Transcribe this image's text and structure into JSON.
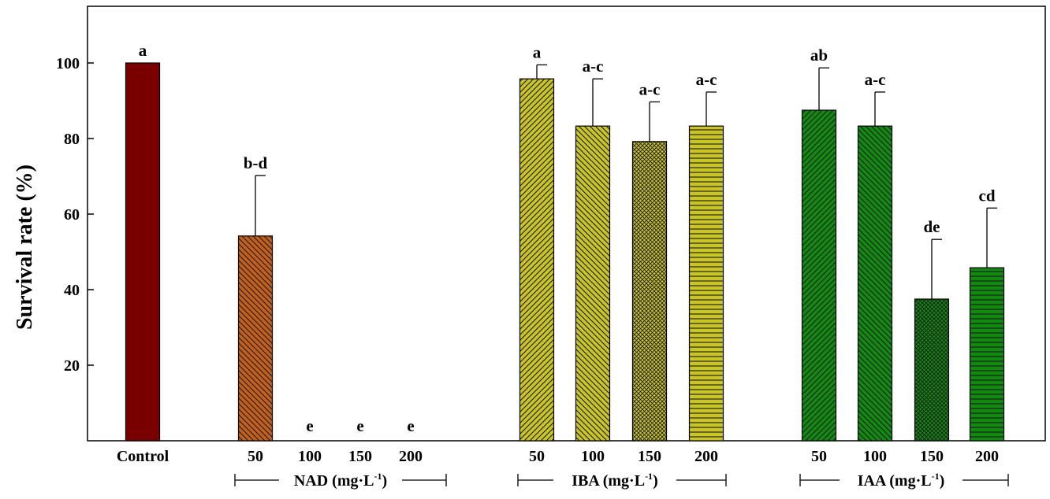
{
  "chart_data": {
    "type": "bar",
    "ylabel": "Survival rate (%)",
    "ylim": [
      0,
      115
    ],
    "y_ticks": [
      20,
      40,
      60,
      80,
      100
    ],
    "grid": false,
    "bars": [
      {
        "label": "Control",
        "value": 100,
        "error": 0,
        "sig": "a",
        "color": "#7a0000",
        "pattern": "solid"
      },
      {
        "label": "50",
        "group": "NAD",
        "value": 54.2,
        "error": 16,
        "sig": "b-d",
        "color": "#c4601c",
        "pattern": "diag-fine"
      },
      {
        "label": "100",
        "group": "NAD",
        "value": 0,
        "error": 0,
        "sig": "e",
        "color": "#c4601c",
        "pattern": "diag-fine"
      },
      {
        "label": "150",
        "group": "NAD",
        "value": 0,
        "error": 0,
        "sig": "e",
        "color": "#c4601c",
        "pattern": "diag-fine"
      },
      {
        "label": "200",
        "group": "NAD",
        "value": 0,
        "error": 0,
        "sig": "e",
        "color": "#c4601c",
        "pattern": "diag-fine"
      },
      {
        "label": "50",
        "group": "IBA",
        "value": 95.8,
        "error": 3.7,
        "sig": "a",
        "color": "#c9c428",
        "pattern": "diag-up"
      },
      {
        "label": "100",
        "group": "IBA",
        "value": 83.3,
        "error": 12.5,
        "sig": "a-c",
        "color": "#c9c428",
        "pattern": "diag-down"
      },
      {
        "label": "150",
        "group": "IBA",
        "value": 79.2,
        "error": 10.5,
        "sig": "a-c",
        "color": "#c9c428",
        "pattern": "cross"
      },
      {
        "label": "200",
        "group": "IBA",
        "value": 83.3,
        "error": 9,
        "sig": "a-c",
        "color": "#c9c428",
        "pattern": "horizontal"
      },
      {
        "label": "50",
        "group": "IAA",
        "value": 87.5,
        "error": 11.2,
        "sig": "ab",
        "color": "#128a12",
        "pattern": "diag-up"
      },
      {
        "label": "100",
        "group": "IAA",
        "value": 83.3,
        "error": 9,
        "sig": "a-c",
        "color": "#128a12",
        "pattern": "diag-down"
      },
      {
        "label": "150",
        "group": "IAA",
        "value": 37.5,
        "error": 15.8,
        "sig": "de",
        "color": "#128a12",
        "pattern": "cross"
      },
      {
        "label": "200",
        "group": "IAA",
        "value": 45.8,
        "error": 15.8,
        "sig": "cd",
        "color": "#128a12",
        "pattern": "horizontal"
      }
    ],
    "groups": [
      {
        "name": "NAD",
        "label": "NAD (mg·L",
        "sup": "-1",
        "close": ")"
      },
      {
        "name": "IBA",
        "label": "IBA (mg·L",
        "sup": "-1",
        "close": ")"
      },
      {
        "name": "IAA",
        "label": "IAA (mg·L",
        "sup": "-1",
        "close": ")"
      }
    ]
  }
}
